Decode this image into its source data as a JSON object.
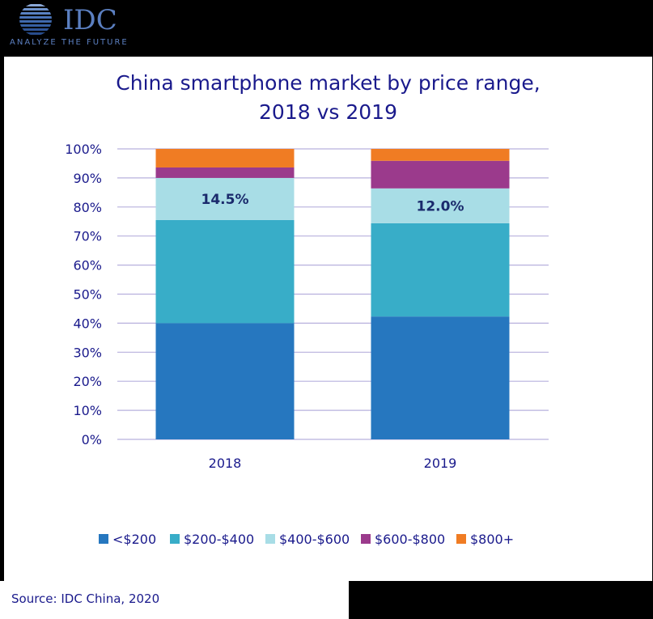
{
  "logo": {
    "brand": "IDC",
    "tagline": "ANALYZE THE FUTURE"
  },
  "colors": {
    "title": "#1a1a8c",
    "grid": "#b7b0dd",
    "under_200": "#2677bf",
    "200_400": "#38adc8",
    "400_600": "#a8dde6",
    "600_800": "#9b3a8c",
    "800_plus": "#f07c23"
  },
  "chart_data": {
    "type": "bar",
    "stacked": true,
    "title_lines": [
      "China smartphone market by price range,",
      "2018 vs 2019"
    ],
    "categories": [
      "2018",
      "2019"
    ],
    "series": [
      {
        "name": "<$200",
        "color": "#2677bf",
        "values": [
          40.0,
          42.3
        ]
      },
      {
        "name": "$200-$400",
        "color": "#38adc8",
        "values": [
          35.5,
          32.1
        ]
      },
      {
        "name": "$400-$600",
        "color": "#a8dde6",
        "values": [
          14.5,
          12.0
        ]
      },
      {
        "name": "$600-$800",
        "color": "#9b3a8c",
        "values": [
          3.6,
          9.5
        ]
      },
      {
        "name": "$800+",
        "color": "#f07c23",
        "values": [
          6.4,
          4.1
        ]
      }
    ],
    "data_labels": [
      {
        "category": "2018",
        "series": "$400-$600",
        "text": "14.5%"
      },
      {
        "category": "2019",
        "series": "$400-$600",
        "text": "12.0%"
      }
    ],
    "ylim": [
      0,
      100
    ],
    "yticks": [
      0,
      10,
      20,
      30,
      40,
      50,
      60,
      70,
      80,
      90,
      100
    ],
    "ytick_labels": [
      "0%",
      "10%",
      "20%",
      "30%",
      "40%",
      "50%",
      "60%",
      "70%",
      "80%",
      "90%",
      "100%"
    ],
    "grid": true,
    "legend_position": "bottom"
  },
  "source": "Source: IDC China, 2020"
}
